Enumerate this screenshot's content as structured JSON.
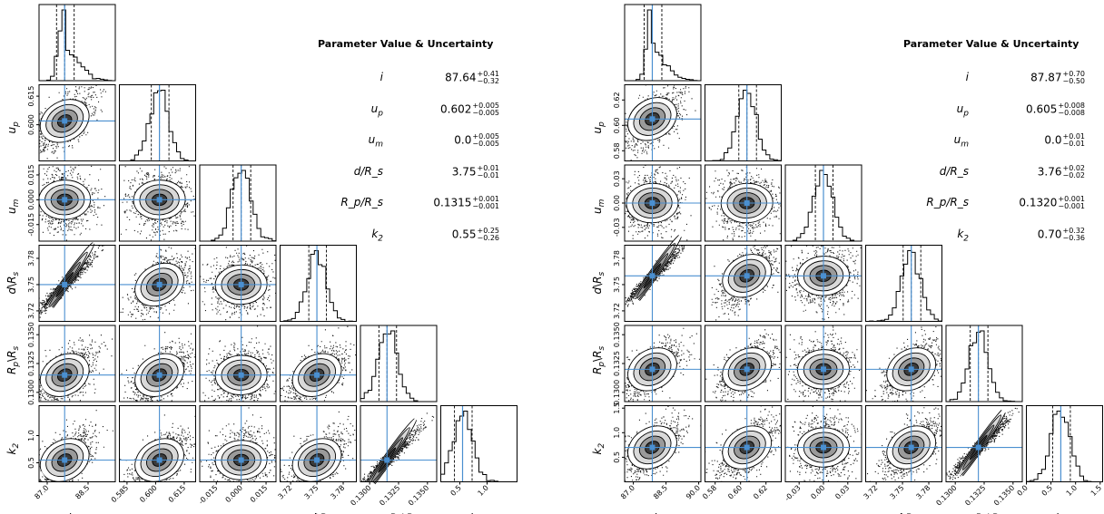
{
  "chart_data": [
    {
      "type": "corner",
      "panel": "left",
      "parameters": [
        "i",
        "u_p",
        "u_m",
        "d\\R_s",
        "R_p\\R_s",
        "k_2"
      ],
      "axis_labels": [
        "i",
        "u_p",
        "u_m",
        "d\\R_s",
        "R_p\\R_s",
        "k_2"
      ],
      "ranges": [
        [
          86.7,
          89.5
        ],
        [
          0.581,
          0.621
        ],
        [
          -0.025,
          0.021
        ],
        [
          3.708,
          3.795
        ],
        [
          0.1292,
          0.1358
        ],
        [
          0.15,
          1.55
        ]
      ],
      "truths": [
        87.64,
        0.602,
        0.0,
        3.75,
        0.1315,
        0.55
      ],
      "ticks": {
        "x": [
          [
            "87.0",
            "88.5"
          ],
          [
            "0.585",
            "0.600",
            "0.615"
          ],
          [
            "-0.015",
            "0.000",
            "0.015"
          ],
          [
            "3.72",
            "3.75",
            "3.78"
          ],
          [
            "0.1300",
            "0.1325",
            "0.1350"
          ],
          [
            "0.5",
            "1.0"
          ]
        ],
        "y": [
          [],
          [
            "0.600",
            "0.615"
          ],
          [
            "-0.015",
            "0.000",
            "0.015"
          ],
          [
            "3.72",
            "3.75",
            "3.78"
          ],
          [
            "0.1300",
            "0.1325",
            "0.1350"
          ],
          [
            "0.5",
            "1.0"
          ]
        ]
      },
      "table": {
        "header": "Parameter  Value & Uncertainty",
        "rows": [
          {
            "name": "i",
            "value": "87.64",
            "plus": "+0.41",
            "minus": "−0.32"
          },
          {
            "name": "u_p",
            "value": "0.602",
            "plus": "+0.005",
            "minus": "−0.005"
          },
          {
            "name": "u_m",
            "value": "0.0",
            "plus": "+0.005",
            "minus": "−0.005"
          },
          {
            "name": "d/R_s",
            "value": "3.75",
            "plus": "+0.01",
            "minus": "−0.01"
          },
          {
            "name": "R_p/R_s",
            "value": "0.1315",
            "plus": "+0.001",
            "minus": "−0.001"
          },
          {
            "name": "k_2",
            "value": "0.55",
            "plus": "+0.25",
            "minus": "−0.26"
          }
        ]
      }
    },
    {
      "type": "corner",
      "panel": "right",
      "parameters": [
        "i",
        "u_p",
        "u_m",
        "d\\R_s",
        "R_p\\R_s",
        "k_2"
      ],
      "axis_labels": [
        "i",
        "u_p",
        "u_m",
        "d\\R_s",
        "R_p\\R_s",
        "k_2"
      ],
      "ranges": [
        [
          86.6,
          90.1
        ],
        [
          0.572,
          0.632
        ],
        [
          -0.047,
          0.047
        ],
        [
          3.708,
          3.795
        ],
        [
          0.1292,
          0.1358
        ],
        [
          0.0,
          1.55
        ]
      ],
      "truths": [
        87.87,
        0.605,
        0.0,
        3.76,
        0.132,
        0.7
      ],
      "ticks": {
        "x": [
          [
            "87.0",
            "88.5",
            "90.0"
          ],
          [
            "0.58",
            "0.60",
            "0.62"
          ],
          [
            "-0.03",
            "0.00",
            "0.03"
          ],
          [
            "3.72",
            "3.75",
            "3.78"
          ],
          [
            "0.1300",
            "0.1325",
            "0.1350"
          ],
          [
            "0.0",
            "0.5",
            "1.0",
            "1.5"
          ]
        ],
        "y": [
          [],
          [
            "0.58",
            "0.60",
            "0.62"
          ],
          [
            "-0.03",
            "0.00",
            "0.03"
          ],
          [
            "3.72",
            "3.75",
            "3.78"
          ],
          [
            "0.1300",
            "0.1325",
            "0.1350"
          ],
          [
            "0.5",
            "1.0",
            "1.5"
          ]
        ]
      },
      "table": {
        "header": "Parameter  Value & Uncertainty",
        "rows": [
          {
            "name": "i",
            "value": "87.87",
            "plus": "+0.70",
            "minus": "−0.50"
          },
          {
            "name": "u_p",
            "value": "0.605",
            "plus": "+0.008",
            "minus": "−0.008"
          },
          {
            "name": "u_m",
            "value": "0.0",
            "plus": "+0.01",
            "minus": "−0.01"
          },
          {
            "name": "d/R_s",
            "value": "3.76",
            "plus": "+0.02",
            "minus": "−0.02"
          },
          {
            "name": "R_p/R_s",
            "value": "0.1320",
            "plus": "+0.001",
            "minus": "−0.001"
          },
          {
            "name": "k_2",
            "value": "0.70",
            "plus": "+0.32",
            "minus": "−0.36"
          }
        ]
      }
    }
  ],
  "style": {
    "truth_line_color": "#4a8fd0",
    "hist_color": "#000000",
    "scatter_color": "#1a1a1a"
  }
}
